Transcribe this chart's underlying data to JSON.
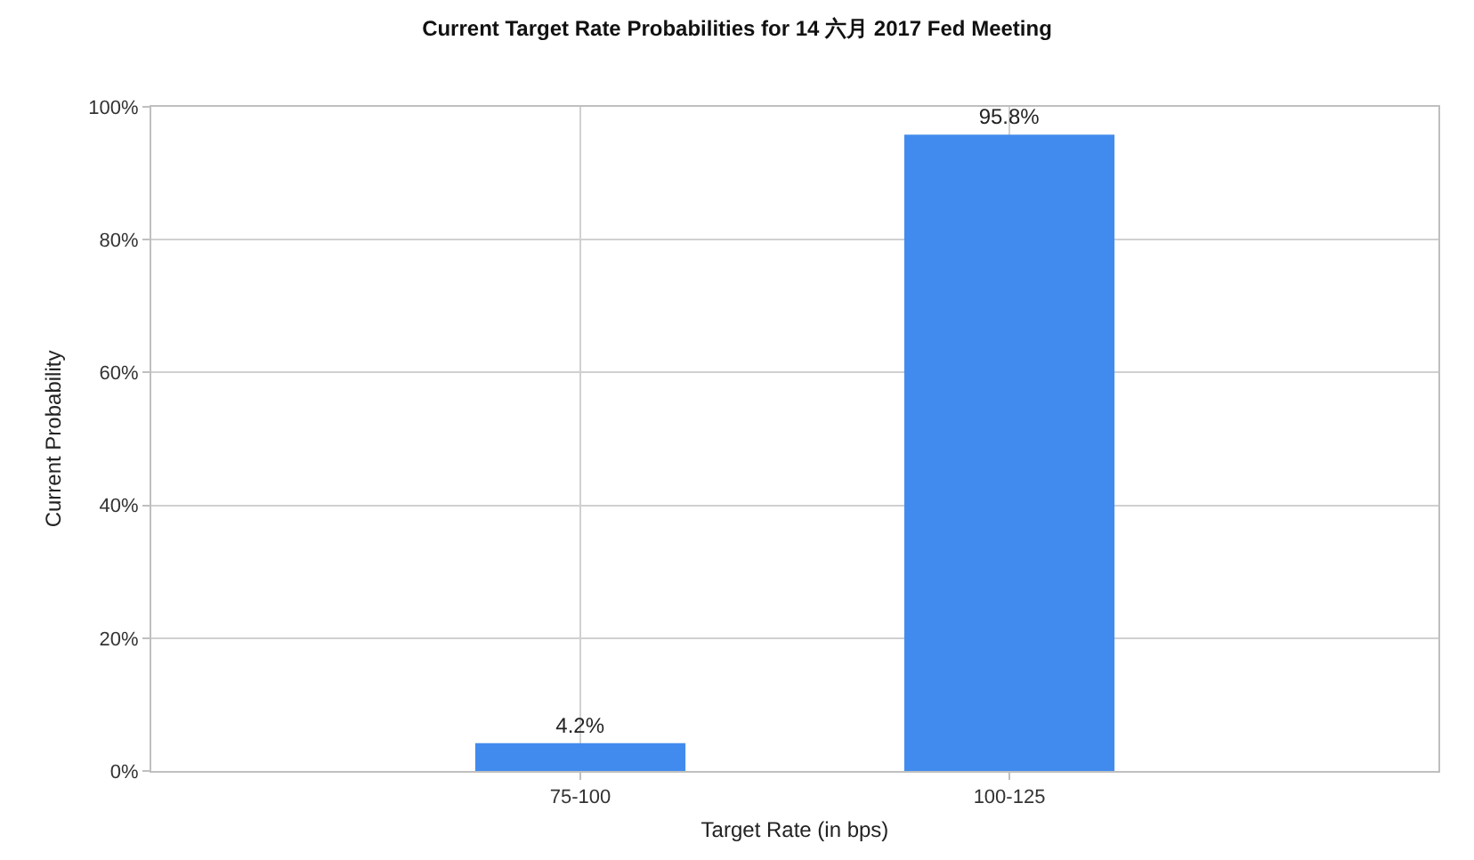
{
  "chart_data": {
    "type": "bar",
    "title": "Current Target Rate Probabilities for 14 六月 2017 Fed Meeting",
    "xlabel": "Target Rate (in bps)",
    "ylabel": "Current Probability",
    "categories": [
      "75-100",
      "100-125"
    ],
    "values": [
      4.2,
      95.8
    ],
    "color": "#428bee",
    "value_labels": [
      "4.2%",
      "95.8%"
    ],
    "ylim": [
      0,
      100
    ],
    "yticks": [
      {
        "value": 0,
        "label": "0%"
      },
      {
        "value": 20,
        "label": "20%"
      },
      {
        "value": 40,
        "label": "40%"
      },
      {
        "value": 60,
        "label": "60%"
      },
      {
        "value": 80,
        "label": "80%"
      },
      {
        "value": 100,
        "label": "100%"
      }
    ],
    "grid": true
  }
}
